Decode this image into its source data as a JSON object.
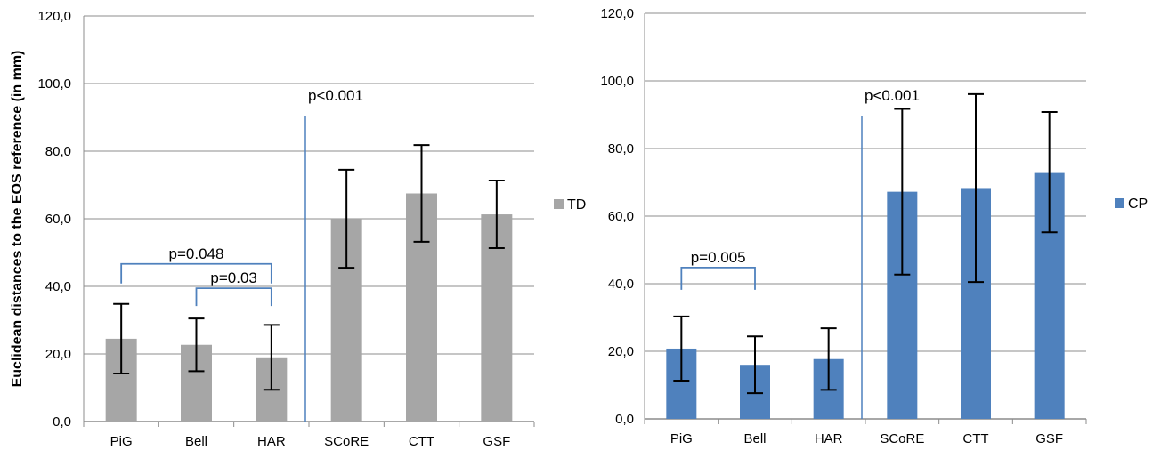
{
  "figure": {
    "ylabel": "Euclidean distances to the EOS reference (in mm)"
  },
  "chart_data": [
    {
      "type": "bar",
      "categories": [
        "PiG",
        "Bell",
        "HAR",
        "SCoRE",
        "CTT",
        "GSF"
      ],
      "series": [
        {
          "name": "TD",
          "color": "#a6a6a6",
          "values": [
            24.5,
            22.7,
            19.0,
            60.0,
            67.5,
            61.3
          ],
          "error": [
            10.3,
            7.8,
            9.6,
            14.5,
            14.3,
            10.0
          ]
        }
      ],
      "ylim": [
        0,
        120
      ],
      "yticks": [
        "0,0",
        "20,0",
        "40,0",
        "60,0",
        "80,0",
        "100,0",
        "120,0"
      ],
      "ylabel": "Euclidean distances to the EOS reference (in mm)",
      "legend_position": "right",
      "divider_after_category": 2,
      "divider_color": "#4f81bd",
      "annotations": [
        {
          "text": "p<0.001",
          "type": "label"
        },
        {
          "text": "p=0.048",
          "type": "bracket",
          "from": 0,
          "to": 2
        },
        {
          "text": "p=0.03",
          "type": "bracket",
          "from": 1,
          "to": 2
        }
      ],
      "grid": true
    },
    {
      "type": "bar",
      "categories": [
        "PiG",
        "Bell",
        "HAR",
        "SCoRE",
        "CTT",
        "GSF"
      ],
      "series": [
        {
          "name": "CP",
          "color": "#4f81bd",
          "values": [
            20.8,
            16.0,
            17.7,
            67.2,
            68.3,
            73.0
          ],
          "error": [
            9.5,
            8.4,
            9.1,
            24.5,
            27.8,
            17.8
          ]
        }
      ],
      "ylim": [
        0,
        120
      ],
      "yticks": [
        "0,0",
        "20,0",
        "40,0",
        "60,0",
        "80,0",
        "100,0",
        "120,0"
      ],
      "legend_position": "right",
      "divider_after_category": 2,
      "divider_color": "#4f81bd",
      "annotations": [
        {
          "text": "p<0.001",
          "type": "label"
        },
        {
          "text": "p=0.005",
          "type": "bracket",
          "from": 0,
          "to": 1
        }
      ],
      "grid": true
    }
  ]
}
